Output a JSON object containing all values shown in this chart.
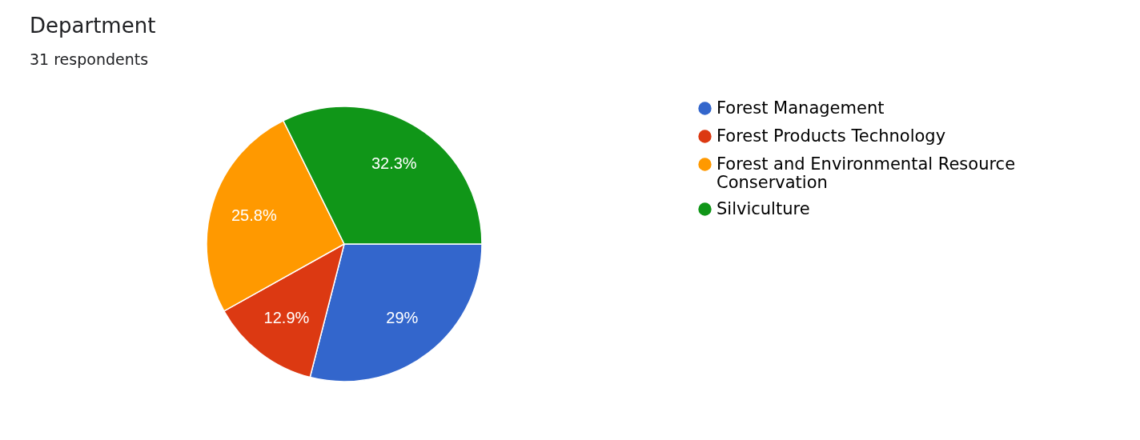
{
  "chart_data": {
    "type": "pie",
    "title": "Department",
    "subtitle": "31 respondents",
    "categories": [
      "Forest Management",
      "Forest Products Technology",
      "Forest and Environmental Resource Conservation",
      "Silviculture"
    ],
    "values": [
      29,
      12.9,
      25.8,
      32.3
    ],
    "colors": [
      "#3366cc",
      "#dc3912",
      "#ff9900",
      "#109618"
    ],
    "value_labels": [
      "29%",
      "12.9%",
      "25.8%",
      "32.3%"
    ],
    "legend": "right"
  }
}
